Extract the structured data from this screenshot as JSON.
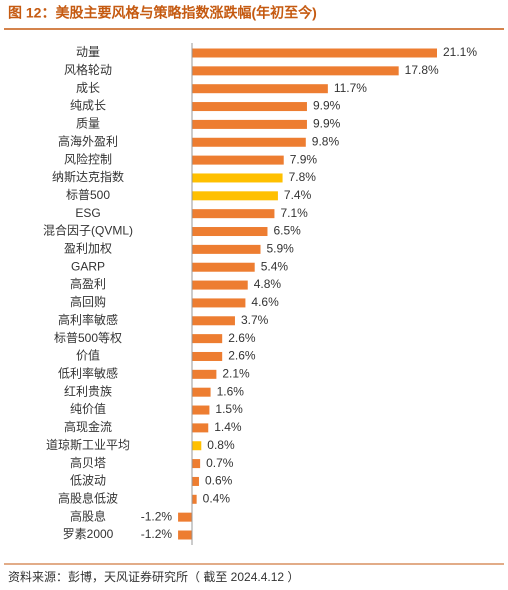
{
  "chart_data": {
    "type": "barh",
    "title": "图 12：美股主要风格与策略指数涨跌幅(年初至今)",
    "source": "资料来源：彭博，天风证券研究所（ 截至 2024.4.12 ）",
    "categories": [
      "动量",
      "风格轮动",
      "成长",
      "纯成长",
      "质量",
      "高海外盈利",
      "风险控制",
      "纳斯达克指数",
      "标普500",
      "ESG",
      "混合因子(QVML)",
      "盈利加权",
      "GARP",
      "高盈利",
      "高回购",
      "高利率敏感",
      "标普500等权",
      "价值",
      "低利率敏感",
      "红利贵族",
      "纯价值",
      "高现金流",
      "道琼斯工业平均",
      "高贝塔",
      "低波动",
      "高股息低波",
      "高股息",
      "罗素2000"
    ],
    "values": [
      21.1,
      17.8,
      11.7,
      9.9,
      9.9,
      9.8,
      7.9,
      7.8,
      7.4,
      7.1,
      6.5,
      5.9,
      5.4,
      4.8,
      4.6,
      3.7,
      2.6,
      2.6,
      2.1,
      1.6,
      1.5,
      1.4,
      0.8,
      0.7,
      0.6,
      0.4,
      -1.2,
      -1.2
    ],
    "value_labels": [
      "21.1%",
      "17.8%",
      "11.7%",
      "9.9%",
      "9.9%",
      "9.8%",
      "7.9%",
      "7.8%",
      "7.4%",
      "7.1%",
      "6.5%",
      "5.9%",
      "5.4%",
      "4.8%",
      "4.6%",
      "3.7%",
      "2.6%",
      "2.6%",
      "2.1%",
      "1.6%",
      "1.5%",
      "1.4%",
      "0.8%",
      "0.7%",
      "0.6%",
      "0.4%",
      "-1.2%",
      "-1.2%"
    ],
    "colors": [
      "#ED7D31",
      "#ED7D31",
      "#ED7D31",
      "#ED7D31",
      "#ED7D31",
      "#ED7D31",
      "#ED7D31",
      "#FFC000",
      "#FFC000",
      "#ED7D31",
      "#ED7D31",
      "#ED7D31",
      "#ED7D31",
      "#ED7D31",
      "#ED7D31",
      "#ED7D31",
      "#ED7D31",
      "#ED7D31",
      "#ED7D31",
      "#ED7D31",
      "#ED7D31",
      "#ED7D31",
      "#FFC000",
      "#ED7D31",
      "#ED7D31",
      "#ED7D31",
      "#ED7D31",
      "#ED7D31"
    ]
  }
}
